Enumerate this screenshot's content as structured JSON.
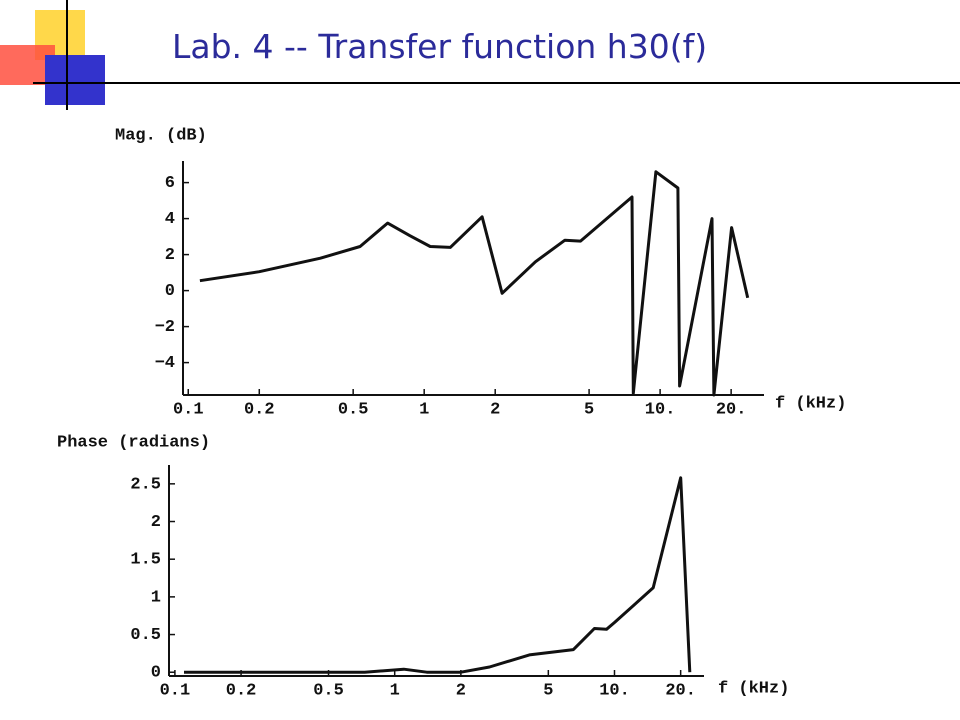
{
  "title": "Lab. 4 -- Transfer function h30(f)",
  "chart_data": [
    {
      "type": "line",
      "ylabel": "Mag. (dB)",
      "xlabel": "f (kHz)",
      "xscale": "log",
      "color": "#111111",
      "x": [
        0.112,
        0.2,
        0.363,
        0.535,
        0.7,
        0.87,
        1.06,
        1.29,
        1.76,
        2.14,
        2.96,
        3.95,
        4.6,
        7.6,
        7.7,
        9.6,
        11.9,
        12.1,
        16.6,
        16.9,
        20.1,
        23.5
      ],
      "values": [
        0.55,
        1.05,
        1.8,
        2.45,
        3.75,
        3.05,
        2.45,
        2.4,
        4.1,
        -0.15,
        1.6,
        2.8,
        2.75,
        5.2,
        -5.7,
        6.6,
        5.7,
        -5.3,
        4.0,
        -5.8,
        3.5,
        -0.4
      ],
      "xlim": [
        0.095,
        25
      ],
      "ylim": [
        -5.8,
        7.2
      ],
      "xticks": [
        0.1,
        0.2,
        0.5,
        1,
        2,
        5,
        {
          "value": 10,
          "label": "10."
        },
        {
          "value": 20,
          "label": "20."
        }
      ],
      "yticks": [
        {
          "value": -4,
          "label": "−4"
        },
        {
          "value": -2,
          "label": "−2"
        },
        0,
        2,
        4,
        6
      ]
    },
    {
      "type": "line",
      "ylabel": "Phase (radians)",
      "xlabel": "f (kHz)",
      "xscale": "log",
      "color": "#111111",
      "x": [
        0.11,
        0.37,
        0.73,
        1.1,
        1.4,
        2,
        2.7,
        4.1,
        6.5,
        8.1,
        9.2,
        10,
        15,
        20,
        22
      ],
      "values": [
        0.0,
        0.0,
        0.0,
        0.04,
        0.0,
        0.0,
        0.07,
        0.23,
        0.3,
        0.58,
        0.57,
        0.66,
        1.12,
        2.58,
        0.0
      ],
      "xlim": [
        0.094,
        23
      ],
      "ylim": [
        -0.05,
        2.75
      ],
      "xticks": [
        0.1,
        0.2,
        0.5,
        1,
        2,
        5,
        {
          "value": 10,
          "label": "10."
        },
        {
          "value": 20,
          "label": "20."
        }
      ],
      "yticks": [
        0,
        0.5,
        1,
        1.5,
        2,
        2.5
      ]
    }
  ]
}
